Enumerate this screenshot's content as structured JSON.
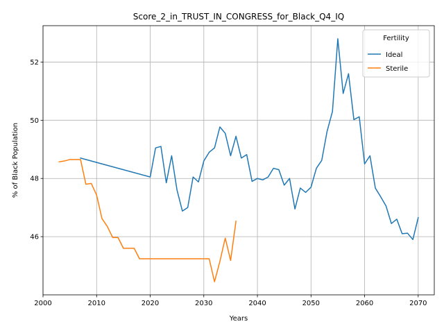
{
  "chart_data": {
    "type": "line",
    "title": "Score_2_in_TRUST_IN_CONGRESS_for_Black_Q4_IQ",
    "xlabel": "Years",
    "ylabel": "% of Black Population",
    "xlim": [
      2000,
      2073
    ],
    "ylim": [
      44.0,
      53.25
    ],
    "xticks": [
      2000,
      2010,
      2020,
      2030,
      2040,
      2050,
      2060,
      2070
    ],
    "yticks": [
      46,
      48,
      50,
      52
    ],
    "grid": true,
    "legend": {
      "title": "Fertility",
      "placement": "top-right"
    },
    "series": [
      {
        "name": "Ideal",
        "color": "#1f77b4",
        "x": [
          2007,
          2020,
          2021,
          2022,
          2023,
          2024,
          2025,
          2026,
          2027,
          2028,
          2029,
          2030,
          2031,
          2032,
          2033,
          2034,
          2035,
          2036,
          2037,
          2038,
          2039,
          2040,
          2041,
          2042,
          2043,
          2044,
          2045,
          2046,
          2047,
          2048,
          2049,
          2050,
          2051,
          2052,
          2053,
          2054,
          2055,
          2056,
          2057,
          2058,
          2059,
          2060,
          2061,
          2062,
          2063,
          2064,
          2065,
          2066,
          2067,
          2068,
          2069,
          2070
        ],
        "y": [
          48.7,
          48.05,
          49.05,
          49.1,
          47.85,
          48.78,
          47.6,
          46.88,
          47.0,
          48.05,
          47.88,
          48.6,
          48.9,
          49.05,
          49.77,
          49.55,
          48.78,
          49.45,
          48.7,
          48.82,
          47.9,
          48.0,
          47.95,
          48.05,
          48.35,
          48.3,
          47.77,
          48.0,
          46.95,
          47.67,
          47.52,
          47.7,
          48.35,
          48.62,
          49.62,
          50.3,
          52.8,
          50.92,
          51.6,
          50.02,
          50.12,
          48.5,
          48.78,
          47.67,
          47.37,
          47.05,
          46.45,
          46.6,
          46.1,
          46.12,
          45.9,
          46.65
        ]
      },
      {
        "name": "Sterile",
        "color": "#ff7f0e",
        "x": [
          2003,
          2004,
          2005,
          2006,
          2007,
          2008,
          2009,
          2010,
          2011,
          2012,
          2013,
          2014,
          2015,
          2016,
          2017,
          2018,
          2019,
          2020,
          2021,
          2022,
          2023,
          2024,
          2025,
          2026,
          2027,
          2028,
          2029,
          2030,
          2031,
          2032,
          2033,
          2034,
          2035,
          2036
        ],
        "y": [
          48.57,
          48.6,
          48.65,
          48.65,
          48.65,
          47.8,
          47.83,
          47.43,
          46.62,
          46.35,
          45.97,
          45.97,
          45.6,
          45.6,
          45.6,
          45.24,
          45.24,
          45.24,
          45.24,
          45.24,
          45.24,
          45.24,
          45.24,
          45.24,
          45.24,
          45.24,
          45.24,
          45.24,
          45.24,
          44.45,
          45.15,
          45.95,
          45.18,
          46.53
        ]
      }
    ]
  }
}
